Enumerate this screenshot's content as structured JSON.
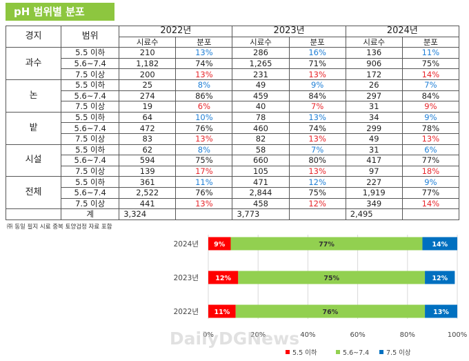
{
  "title": "pH 범위별 분포",
  "table": {
    "header_group": "경지",
    "header_range": "범위",
    "years": [
      "2022년",
      "2023년",
      "2024년"
    ],
    "subheaders": [
      "시료수",
      "분포"
    ],
    "groups": [
      {
        "name": "과수",
        "rows": [
          {
            "range": "5.5 이하",
            "vals": [
              "210",
              "13%",
              "286",
              "16%",
              "136",
              "11%"
            ]
          },
          {
            "range": "5.6~7.4",
            "vals": [
              "1,182",
              "74%",
              "1,265",
              "71%",
              "906",
              "75%"
            ]
          },
          {
            "range": "7.5 이상",
            "vals": [
              "200",
              "13%",
              "231",
              "13%",
              "172",
              "14%"
            ]
          }
        ]
      },
      {
        "name": "논",
        "rows": [
          {
            "range": "5.5 이하",
            "vals": [
              "25",
              "8%",
              "49",
              "9%",
              "26",
              "7%"
            ]
          },
          {
            "range": "5.6~7.4",
            "vals": [
              "274",
              "86%",
              "459",
              "84%",
              "297",
              "84%"
            ]
          },
          {
            "range": "7.5 이상",
            "vals": [
              "19",
              "6%",
              "40",
              "7%",
              "31",
              "9%"
            ]
          }
        ]
      },
      {
        "name": "밭",
        "rows": [
          {
            "range": "5.5 이하",
            "vals": [
              "64",
              "10%",
              "78",
              "13%",
              "34",
              "9%"
            ]
          },
          {
            "range": "5.6~7.4",
            "vals": [
              "472",
              "76%",
              "460",
              "74%",
              "299",
              "78%"
            ]
          },
          {
            "range": "7.5 이상",
            "vals": [
              "83",
              "13%",
              "82",
              "13%",
              "49",
              "13%"
            ]
          }
        ]
      },
      {
        "name": "시설",
        "rows": [
          {
            "range": "5.5 이하",
            "vals": [
              "62",
              "8%",
              "58",
              "7%",
              "31",
              "6%"
            ]
          },
          {
            "range": "5.6~7.4",
            "vals": [
              "594",
              "75%",
              "660",
              "80%",
              "417",
              "77%"
            ]
          },
          {
            "range": "7.5 이상",
            "vals": [
              "139",
              "17%",
              "105",
              "13%",
              "97",
              "18%"
            ]
          }
        ]
      },
      {
        "name": "전체",
        "rows": [
          {
            "range": "5.5 이하",
            "vals": [
              "361",
              "11%",
              "471",
              "12%",
              "227",
              "9%"
            ]
          },
          {
            "range": "5.6~7.4",
            "vals": [
              "2,522",
              "76%",
              "2,844",
              "75%",
              "1,919",
              "77%"
            ]
          },
          {
            "range": "7.5 이상",
            "vals": [
              "441",
              "13%",
              "458",
              "12%",
              "349",
              "14%"
            ]
          }
        ]
      }
    ],
    "total_label": "계",
    "totals": [
      "3,324",
      "3,773",
      "2,495"
    ]
  },
  "note": "㈜ 동일 필지 시료 중복 토양검정 자료 포함",
  "colors": {
    "low": "#ff0000",
    "mid": "#92d050",
    "high": "#0070c0",
    "blue_text": "#1f7fd6",
    "red_text": "#e8262b",
    "title_bg": "#8dc63f"
  },
  "watermark": "DailyDGNews",
  "chart_data": {
    "type": "bar",
    "orientation": "horizontal",
    "stacked": true,
    "categories": [
      "2024년",
      "2023년",
      "2022년"
    ],
    "series": [
      {
        "name": "5.5 이하",
        "values": [
          9,
          12,
          11
        ],
        "labels": [
          "9%",
          "12%",
          "11%"
        ]
      },
      {
        "name": "5.6~7.4",
        "values": [
          77,
          75,
          76
        ],
        "labels": [
          "77%",
          "75%",
          "76%"
        ]
      },
      {
        "name": "7.5 이상",
        "values": [
          14,
          12,
          13
        ],
        "labels": [
          "14%",
          "12%",
          "13%"
        ]
      }
    ],
    "x_ticks": [
      "0%",
      "20%",
      "40%",
      "60%",
      "80%",
      "100%"
    ],
    "xlim": [
      0,
      100
    ],
    "legend_position": "bottom",
    "grid": true
  }
}
